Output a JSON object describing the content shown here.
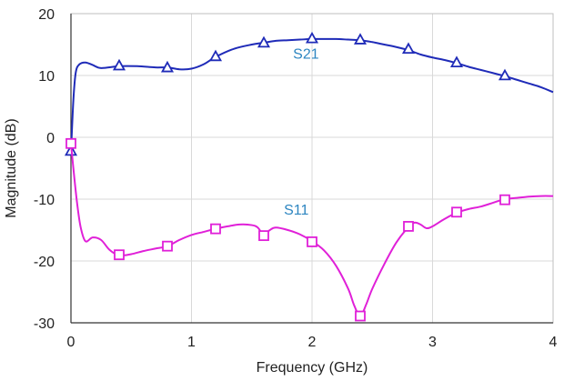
{
  "chart_data": {
    "type": "line",
    "title": "",
    "xlabel": "Frequency (GHz)",
    "ylabel": "Magnitude (dB)",
    "xlim": [
      0,
      4
    ],
    "ylim": [
      -30,
      20
    ],
    "x_ticks": [
      0,
      1,
      2,
      3,
      4
    ],
    "y_ticks": [
      -30,
      -20,
      -10,
      0,
      10,
      20
    ],
    "x_tick_labels": [
      "0",
      "1",
      "2",
      "3",
      "4"
    ],
    "y_tick_labels": [
      "-30",
      "-20",
      "-10",
      "0",
      "10",
      "20"
    ],
    "grid": {
      "horizontal": true,
      "vertical": true,
      "color": "#d9d9d9"
    },
    "legend": "none",
    "series": [
      {
        "name": "S21",
        "color": "#1f2bb8",
        "label_color": "#2e86c1",
        "marker": "triangle",
        "label_at": {
          "x": 1.95,
          "y": 12.7
        },
        "line": [
          [
            0.0,
            -2.5
          ],
          [
            0.02,
            6
          ],
          [
            0.04,
            10.5
          ],
          [
            0.07,
            11.8
          ],
          [
            0.12,
            12.1
          ],
          [
            0.18,
            11.7
          ],
          [
            0.25,
            11.2
          ],
          [
            0.4,
            11.5
          ],
          [
            0.55,
            11.5
          ],
          [
            0.7,
            11.3
          ],
          [
            0.8,
            11.3
          ],
          [
            0.9,
            11.0
          ],
          [
            1.0,
            11.1
          ],
          [
            1.1,
            11.8
          ],
          [
            1.2,
            13.0
          ],
          [
            1.35,
            14.3
          ],
          [
            1.5,
            15.0
          ],
          [
            1.6,
            15.3
          ],
          [
            1.7,
            15.6
          ],
          [
            1.8,
            15.7
          ],
          [
            1.9,
            15.8
          ],
          [
            2.0,
            15.9
          ],
          [
            2.1,
            15.9
          ],
          [
            2.2,
            15.9
          ],
          [
            2.3,
            15.8
          ],
          [
            2.4,
            15.7
          ],
          [
            2.5,
            15.4
          ],
          [
            2.6,
            15.0
          ],
          [
            2.7,
            14.6
          ],
          [
            2.8,
            14.1
          ],
          [
            2.9,
            13.4
          ],
          [
            3.0,
            12.9
          ],
          [
            3.1,
            12.5
          ],
          [
            3.2,
            12.0
          ],
          [
            3.3,
            11.4
          ],
          [
            3.4,
            10.9
          ],
          [
            3.5,
            10.4
          ],
          [
            3.6,
            9.9
          ],
          [
            3.7,
            9.3
          ],
          [
            3.8,
            8.7
          ],
          [
            3.9,
            8.1
          ],
          [
            4.0,
            7.3
          ]
        ],
        "markers": [
          [
            0.0,
            -2.2
          ],
          [
            0.4,
            11.6
          ],
          [
            0.8,
            11.3
          ],
          [
            1.2,
            13.1
          ],
          [
            1.6,
            15.3
          ],
          [
            2.0,
            16.0
          ],
          [
            2.4,
            15.8
          ],
          [
            2.8,
            14.3
          ],
          [
            3.2,
            12.1
          ],
          [
            3.6,
            10.0
          ]
        ]
      },
      {
        "name": "S11",
        "color": "#e020d8",
        "label_color": "#2e86c1",
        "marker": "square",
        "label_at": {
          "x": 1.87,
          "y": -12.5
        },
        "line": [
          [
            0.0,
            -1.0
          ],
          [
            0.02,
            -5
          ],
          [
            0.05,
            -10.5
          ],
          [
            0.08,
            -14.5
          ],
          [
            0.12,
            -16.8
          ],
          [
            0.18,
            -16.2
          ],
          [
            0.25,
            -16.6
          ],
          [
            0.32,
            -18.2
          ],
          [
            0.4,
            -19.1
          ],
          [
            0.5,
            -18.9
          ],
          [
            0.6,
            -18.4
          ],
          [
            0.7,
            -18.0
          ],
          [
            0.8,
            -17.6
          ],
          [
            0.9,
            -16.6
          ],
          [
            1.0,
            -15.8
          ],
          [
            1.1,
            -15.3
          ],
          [
            1.2,
            -14.8
          ],
          [
            1.3,
            -14.4
          ],
          [
            1.4,
            -14.1
          ],
          [
            1.5,
            -14.2
          ],
          [
            1.55,
            -14.6
          ],
          [
            1.6,
            -15.8
          ],
          [
            1.65,
            -15.0
          ],
          [
            1.7,
            -14.6
          ],
          [
            1.8,
            -15.0
          ],
          [
            1.9,
            -15.7
          ],
          [
            2.0,
            -16.8
          ],
          [
            2.1,
            -18.3
          ],
          [
            2.2,
            -20.8
          ],
          [
            2.3,
            -24.5
          ],
          [
            2.35,
            -27.2
          ],
          [
            2.4,
            -28.9
          ],
          [
            2.45,
            -27.0
          ],
          [
            2.5,
            -24.5
          ],
          [
            2.6,
            -20.5
          ],
          [
            2.7,
            -17.0
          ],
          [
            2.8,
            -14.5
          ],
          [
            2.85,
            -13.8
          ],
          [
            2.9,
            -14.1
          ],
          [
            2.95,
            -14.7
          ],
          [
            3.0,
            -14.4
          ],
          [
            3.1,
            -13.2
          ],
          [
            3.2,
            -12.2
          ],
          [
            3.3,
            -11.6
          ],
          [
            3.4,
            -11.2
          ],
          [
            3.5,
            -10.6
          ],
          [
            3.6,
            -10.0
          ],
          [
            3.7,
            -9.8
          ],
          [
            3.8,
            -9.6
          ],
          [
            3.9,
            -9.5
          ],
          [
            4.0,
            -9.5
          ]
        ],
        "markers": [
          [
            0.0,
            -1.0
          ],
          [
            0.4,
            -19.0
          ],
          [
            0.8,
            -17.6
          ],
          [
            1.2,
            -14.8
          ],
          [
            1.6,
            -15.9
          ],
          [
            2.0,
            -16.9
          ],
          [
            2.4,
            -28.9
          ],
          [
            2.8,
            -14.4
          ],
          [
            3.2,
            -12.1
          ],
          [
            3.6,
            -10.1
          ]
        ]
      }
    ]
  }
}
